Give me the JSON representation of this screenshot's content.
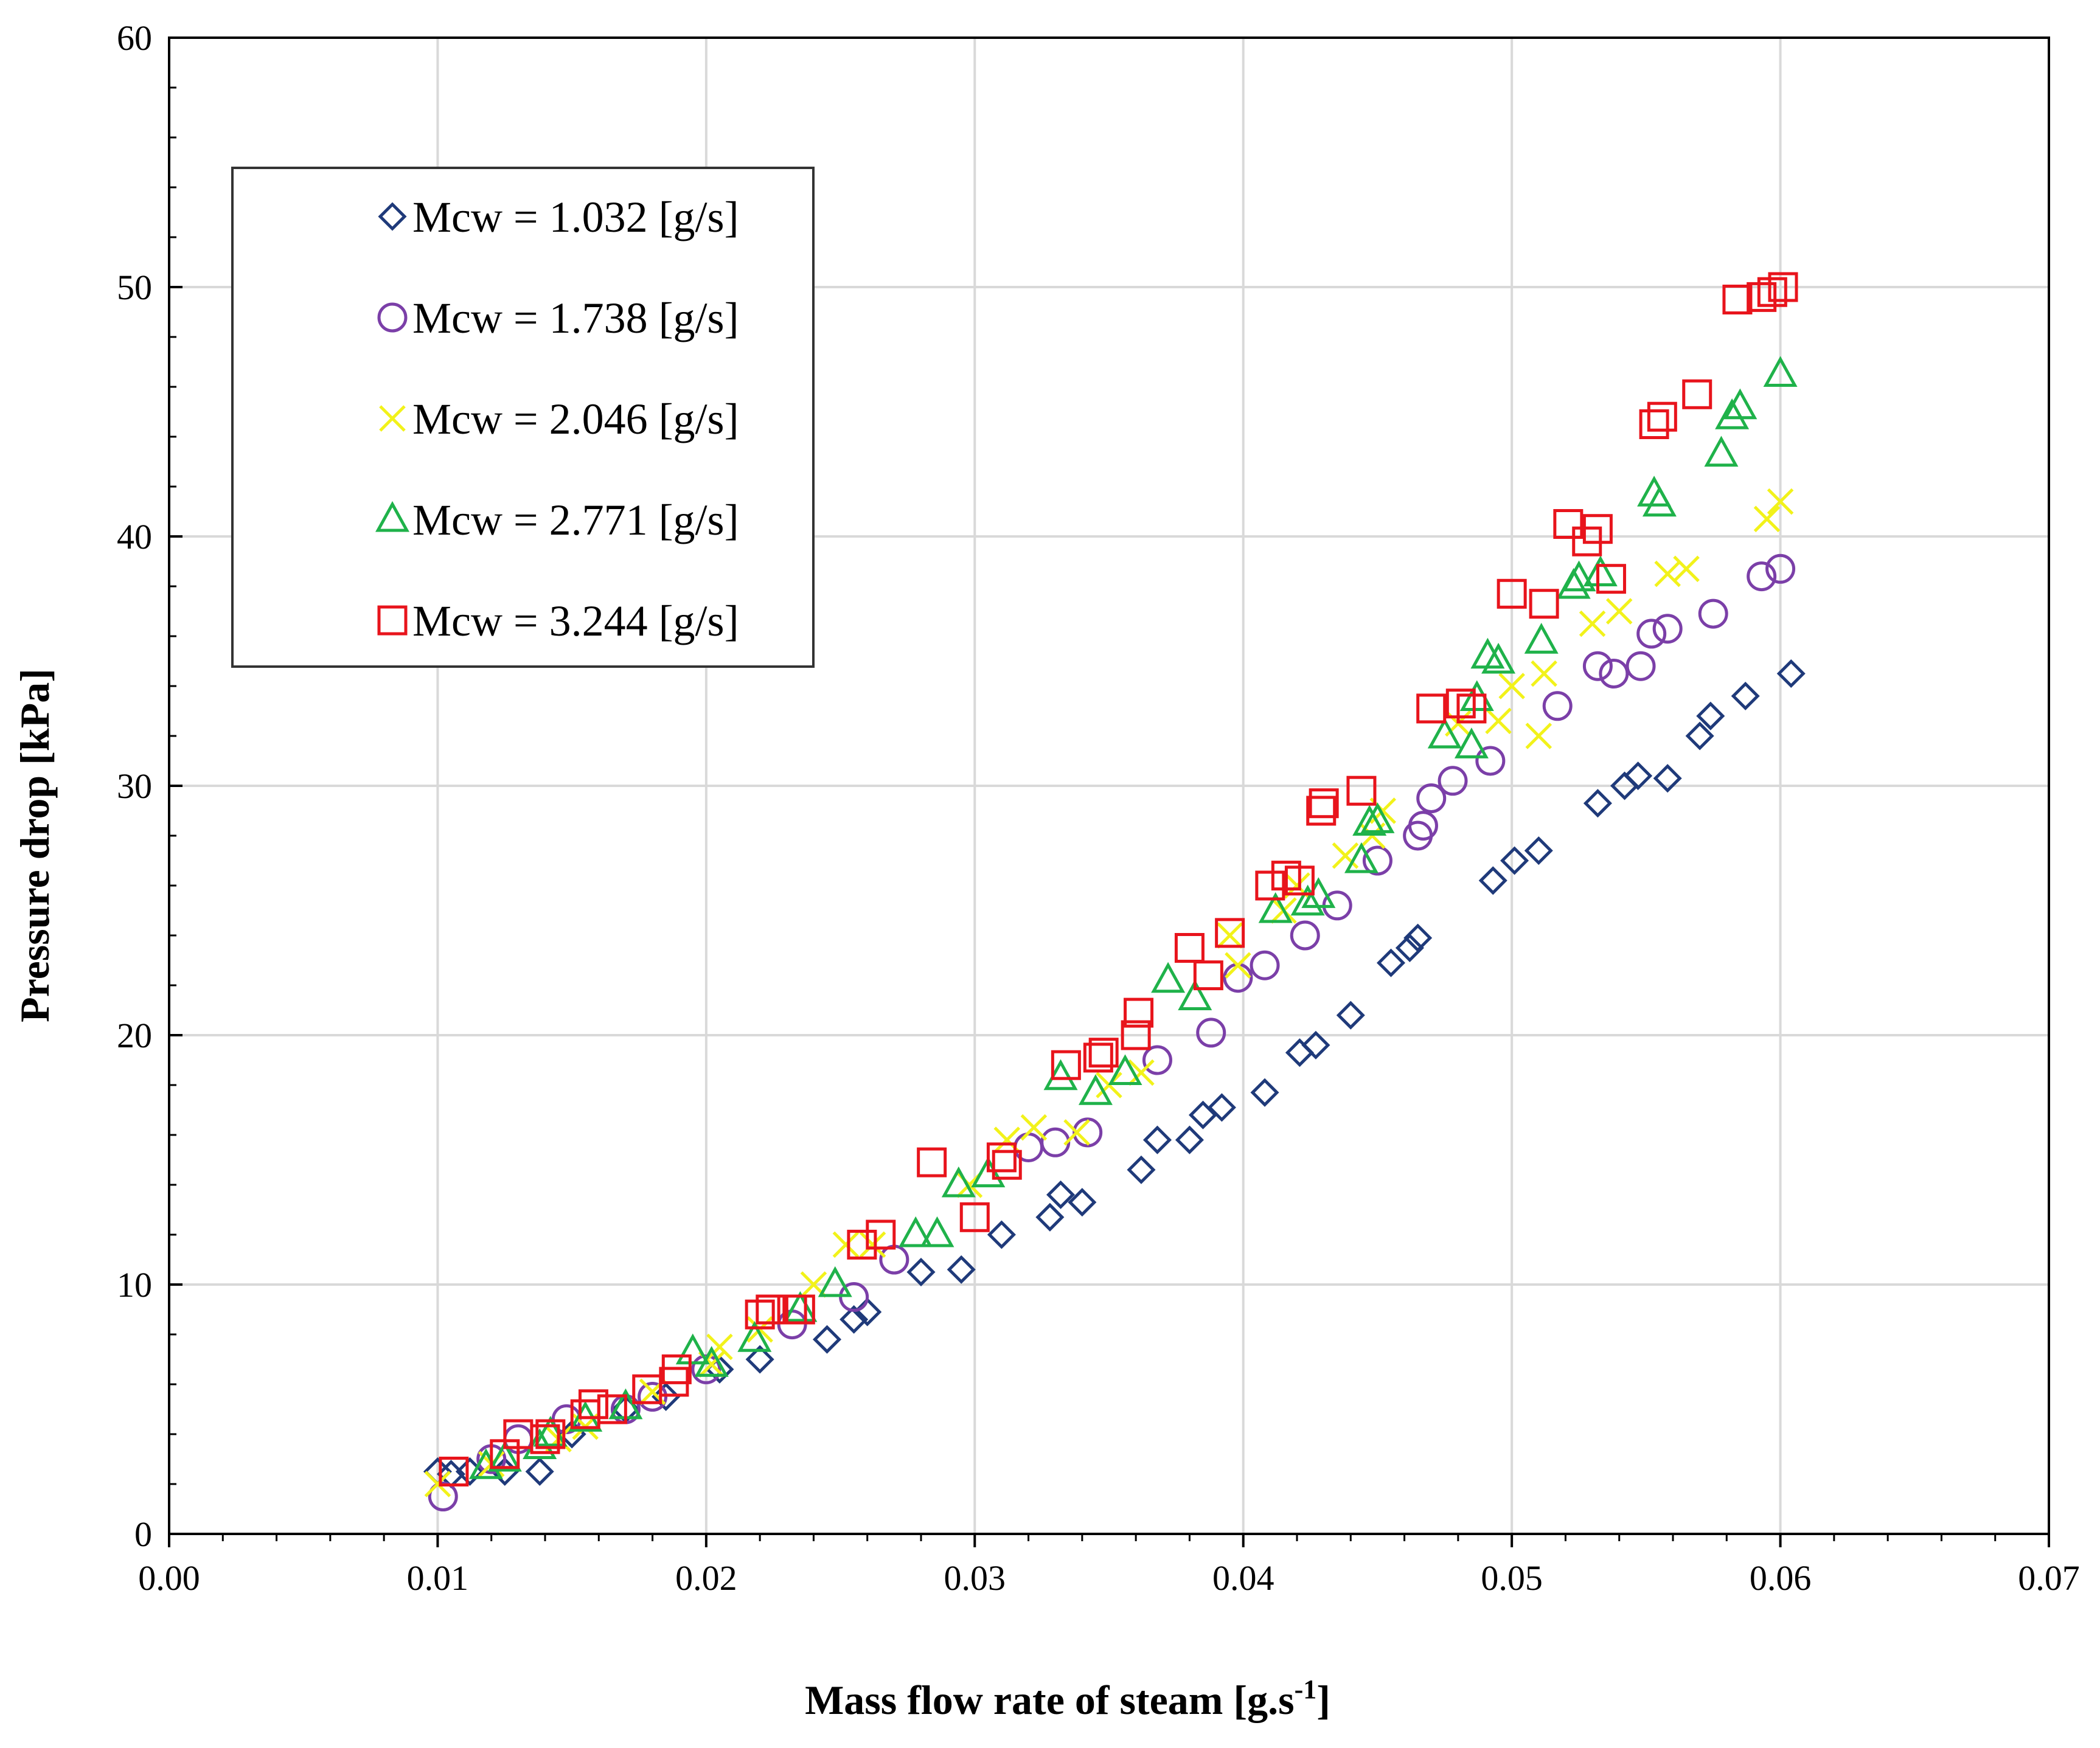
{
  "chart_data": {
    "type": "scatter",
    "title": "",
    "xlabel_main": "Mass flow rate of steam [g.s",
    "xlabel_sup": "-1",
    "xlabel_end": "]",
    "ylabel": "Pressure drop [kPa]",
    "xlim": [
      0,
      0.07
    ],
    "ylim": [
      0,
      60
    ],
    "xticks": [
      "0.00",
      "0.01",
      "0.02",
      "0.03",
      "0.04",
      "0.05",
      "0.06",
      "0.07"
    ],
    "yticks": [
      "0",
      "10",
      "20",
      "30",
      "40",
      "50",
      "60"
    ],
    "grid": true,
    "legend_position": "top-left",
    "series": [
      {
        "name": "Mcw = 1.032 [g/s]",
        "marker": "diamond",
        "color": "#1f3a7a",
        "points": [
          [
            0.01,
            2.5
          ],
          [
            0.0105,
            2.4
          ],
          [
            0.0112,
            2.5
          ],
          [
            0.0125,
            2.5
          ],
          [
            0.0138,
            2.5
          ],
          [
            0.015,
            4.0
          ],
          [
            0.017,
            5.0
          ],
          [
            0.0185,
            5.5
          ],
          [
            0.0205,
            6.6
          ],
          [
            0.022,
            7.0
          ],
          [
            0.0245,
            7.8
          ],
          [
            0.0255,
            8.6
          ],
          [
            0.026,
            8.9
          ],
          [
            0.028,
            10.5
          ],
          [
            0.0295,
            10.6
          ],
          [
            0.031,
            12.0
          ],
          [
            0.0328,
            12.7
          ],
          [
            0.0332,
            13.6
          ],
          [
            0.034,
            13.3
          ],
          [
            0.0362,
            14.6
          ],
          [
            0.0368,
            15.8
          ],
          [
            0.038,
            15.8
          ],
          [
            0.0385,
            16.8
          ],
          [
            0.0392,
            17.1
          ],
          [
            0.0408,
            17.7
          ],
          [
            0.0421,
            19.3
          ],
          [
            0.0427,
            19.6
          ],
          [
            0.044,
            20.8
          ],
          [
            0.0455,
            22.9
          ],
          [
            0.0462,
            23.5
          ],
          [
            0.0465,
            23.9
          ],
          [
            0.0493,
            26.2
          ],
          [
            0.0501,
            27.0
          ],
          [
            0.051,
            27.4
          ],
          [
            0.0532,
            29.3
          ],
          [
            0.0542,
            30.0
          ],
          [
            0.0547,
            30.4
          ],
          [
            0.0558,
            30.3
          ],
          [
            0.057,
            32.0
          ],
          [
            0.0574,
            32.8
          ],
          [
            0.0587,
            33.6
          ],
          [
            0.0604,
            34.5
          ]
        ]
      },
      {
        "name": "Mcw = 1.738 [g/s]",
        "marker": "circle",
        "color": "#7b3fa8",
        "points": [
          [
            0.0102,
            1.5
          ],
          [
            0.012,
            3.0
          ],
          [
            0.013,
            3.8
          ],
          [
            0.0148,
            4.6
          ],
          [
            0.017,
            5.0
          ],
          [
            0.018,
            5.5
          ],
          [
            0.02,
            6.6
          ],
          [
            0.0232,
            8.4
          ],
          [
            0.0255,
            9.5
          ],
          [
            0.027,
            11.0
          ],
          [
            0.032,
            15.5
          ],
          [
            0.033,
            15.7
          ],
          [
            0.0342,
            16.1
          ],
          [
            0.0368,
            19.0
          ],
          [
            0.0388,
            20.1
          ],
          [
            0.0398,
            22.3
          ],
          [
            0.0408,
            22.8
          ],
          [
            0.0423,
            24.0
          ],
          [
            0.0435,
            25.2
          ],
          [
            0.045,
            27.0
          ],
          [
            0.0465,
            28.0
          ],
          [
            0.0467,
            28.4
          ],
          [
            0.047,
            29.5
          ],
          [
            0.0478,
            30.2
          ],
          [
            0.0492,
            31.0
          ],
          [
            0.0517,
            33.2
          ],
          [
            0.0532,
            34.8
          ],
          [
            0.0538,
            34.5
          ],
          [
            0.0548,
            34.8
          ],
          [
            0.0552,
            36.1
          ],
          [
            0.0558,
            36.3
          ],
          [
            0.0575,
            36.9
          ],
          [
            0.0593,
            38.4
          ],
          [
            0.06,
            38.7
          ]
        ]
      },
      {
        "name": "Mcw = 2.046 [g/s]",
        "marker": "cross",
        "color": "#f2f21a",
        "points": [
          [
            0.01,
            2.0
          ],
          [
            0.012,
            2.8
          ],
          [
            0.0145,
            3.8
          ],
          [
            0.0155,
            4.3
          ],
          [
            0.018,
            5.7
          ],
          [
            0.0202,
            6.8
          ],
          [
            0.0205,
            7.5
          ],
          [
            0.022,
            8.2
          ],
          [
            0.024,
            10.0
          ],
          [
            0.0252,
            11.6
          ],
          [
            0.0262,
            11.6
          ],
          [
            0.0298,
            14.0
          ],
          [
            0.0312,
            15.8
          ],
          [
            0.0322,
            16.3
          ],
          [
            0.0338,
            16.1
          ],
          [
            0.035,
            18.0
          ],
          [
            0.0362,
            18.5
          ],
          [
            0.0398,
            22.8
          ],
          [
            0.0395,
            24.0
          ],
          [
            0.0415,
            25.0
          ],
          [
            0.042,
            26.0
          ],
          [
            0.0438,
            27.2
          ],
          [
            0.0448,
            28.0
          ],
          [
            0.0452,
            29.0
          ],
          [
            0.048,
            32.5
          ],
          [
            0.0495,
            32.6
          ],
          [
            0.05,
            34.0
          ],
          [
            0.051,
            32.0
          ],
          [
            0.0512,
            34.5
          ],
          [
            0.053,
            36.5
          ],
          [
            0.054,
            37.0
          ],
          [
            0.0558,
            38.5
          ],
          [
            0.0565,
            38.7
          ],
          [
            0.0595,
            40.7
          ],
          [
            0.06,
            41.4
          ]
        ]
      },
      {
        "name": "Mcw = 2.771 [g/s]",
        "marker": "triangle",
        "color": "#1fb24a",
        "points": [
          [
            0.0118,
            2.7
          ],
          [
            0.0125,
            3.0
          ],
          [
            0.0138,
            3.5
          ],
          [
            0.0142,
            4.0
          ],
          [
            0.0155,
            4.6
          ],
          [
            0.017,
            5.1
          ],
          [
            0.0195,
            7.3
          ],
          [
            0.0202,
            6.8
          ],
          [
            0.0218,
            7.8
          ],
          [
            0.0235,
            9.0
          ],
          [
            0.0248,
            10.0
          ],
          [
            0.0278,
            12.0
          ],
          [
            0.0286,
            12.0
          ],
          [
            0.0294,
            14.0
          ],
          [
            0.0305,
            14.4
          ],
          [
            0.0332,
            18.3
          ],
          [
            0.0345,
            17.7
          ],
          [
            0.0356,
            18.5
          ],
          [
            0.0372,
            22.2
          ],
          [
            0.0382,
            21.5
          ],
          [
            0.0412,
            25.0
          ],
          [
            0.0424,
            25.3
          ],
          [
            0.0428,
            25.6
          ],
          [
            0.0444,
            27.0
          ],
          [
            0.0447,
            28.5
          ],
          [
            0.045,
            28.6
          ],
          [
            0.0475,
            32.0
          ],
          [
            0.0485,
            31.6
          ],
          [
            0.0487,
            33.5
          ],
          [
            0.0491,
            35.2
          ],
          [
            0.0495,
            35.0
          ],
          [
            0.0511,
            35.8
          ],
          [
            0.0523,
            38.0
          ],
          [
            0.0525,
            38.3
          ],
          [
            0.0533,
            38.5
          ],
          [
            0.0553,
            41.7
          ],
          [
            0.0555,
            41.3
          ],
          [
            0.0578,
            43.3
          ],
          [
            0.0582,
            44.8
          ],
          [
            0.0585,
            45.2
          ],
          [
            0.06,
            46.5
          ]
        ]
      },
      {
        "name": "Mcw = 3.244 [g/s]",
        "marker": "square",
        "color": "#e8141c",
        "points": [
          [
            0.0106,
            2.5
          ],
          [
            0.0125,
            3.2
          ],
          [
            0.013,
            4.0
          ],
          [
            0.014,
            3.8
          ],
          [
            0.0142,
            4.0
          ],
          [
            0.0155,
            4.8
          ],
          [
            0.0158,
            5.2
          ],
          [
            0.0165,
            5.0
          ],
          [
            0.0178,
            5.8
          ],
          [
            0.0188,
            6.1
          ],
          [
            0.0189,
            6.6
          ],
          [
            0.022,
            8.8
          ],
          [
            0.0224,
            9.0
          ],
          [
            0.0232,
            9.0
          ],
          [
            0.0235,
            9.0
          ],
          [
            0.0258,
            11.6
          ],
          [
            0.0265,
            12.0
          ],
          [
            0.0284,
            14.9
          ],
          [
            0.03,
            12.7
          ],
          [
            0.031,
            15.1
          ],
          [
            0.0312,
            14.8
          ],
          [
            0.0334,
            18.8
          ],
          [
            0.0346,
            19.1
          ],
          [
            0.0348,
            19.3
          ],
          [
            0.036,
            20.0
          ],
          [
            0.0361,
            20.9
          ],
          [
            0.038,
            23.5
          ],
          [
            0.0387,
            22.4
          ],
          [
            0.0395,
            24.1
          ],
          [
            0.041,
            26.0
          ],
          [
            0.0416,
            26.4
          ],
          [
            0.0421,
            26.2
          ],
          [
            0.0429,
            29.0
          ],
          [
            0.043,
            29.3
          ],
          [
            0.0444,
            29.8
          ],
          [
            0.047,
            33.1
          ],
          [
            0.0481,
            33.3
          ],
          [
            0.0485,
            33.1
          ],
          [
            0.05,
            37.7
          ],
          [
            0.0512,
            37.3
          ],
          [
            0.0521,
            40.5
          ],
          [
            0.0528,
            39.8
          ],
          [
            0.0532,
            40.3
          ],
          [
            0.0537,
            38.3
          ],
          [
            0.0553,
            44.5
          ],
          [
            0.0556,
            44.8
          ],
          [
            0.0569,
            45.7
          ],
          [
            0.0584,
            49.5
          ],
          [
            0.0593,
            49.6
          ],
          [
            0.0597,
            49.8
          ],
          [
            0.0601,
            50.0
          ]
        ]
      }
    ]
  }
}
